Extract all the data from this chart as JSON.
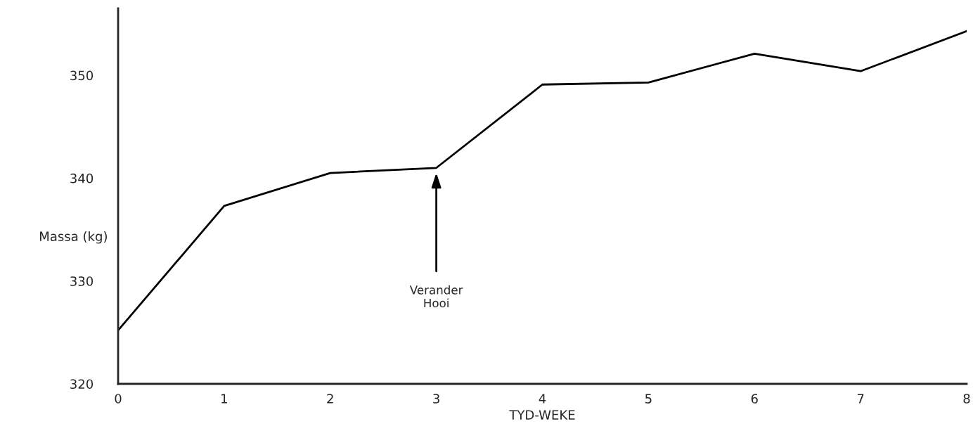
{
  "chart_data": {
    "type": "line",
    "xlabel": "TYD-WEKE",
    "ylabel": "Massa (kg)",
    "x": [
      0,
      1,
      2,
      3,
      4,
      5,
      6,
      7,
      8
    ],
    "series": [
      {
        "color": "#000000",
        "values": [
          325.2,
          337.3,
          340.5,
          341.0,
          349.1,
          349.3,
          352.1,
          350.4,
          354.3
        ]
      }
    ],
    "xlim": [
      0,
      8
    ],
    "xticks": [
      0,
      1,
      2,
      3,
      4,
      5,
      6,
      7,
      8
    ],
    "ylim": [
      320,
      356.5
    ],
    "yticks": [
      320,
      330,
      340,
      350
    ],
    "grid": false,
    "marker": "none",
    "line_style": "solid",
    "annotations": [
      "Verander\nHooi"
    ]
  }
}
